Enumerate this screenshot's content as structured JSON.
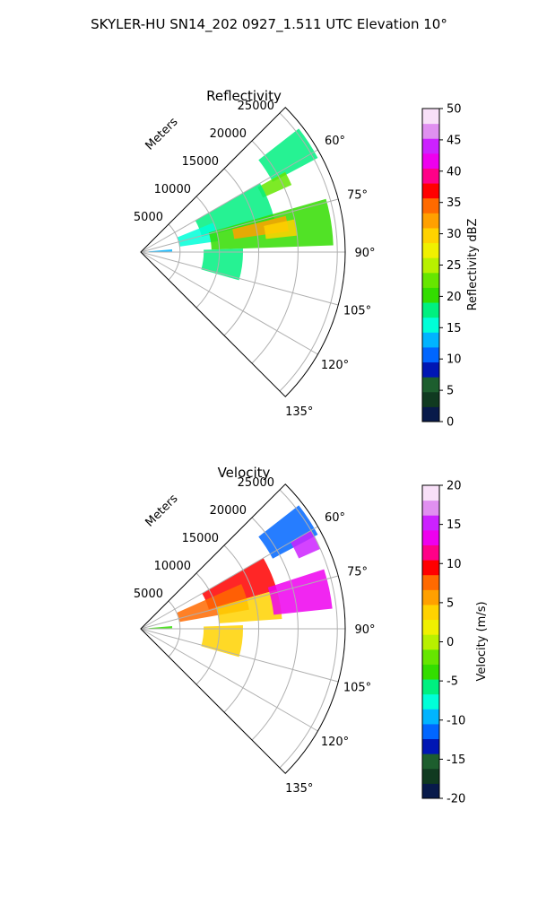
{
  "figure_title": "SKYLER-HU  SN14_202  0927_1.511 UTC Elevation 10°",
  "panels": [
    {
      "title": "Reflectivity",
      "range_label": "Meters",
      "range_ticks": [
        "5000",
        "10000",
        "15000",
        "20000",
        "25000"
      ],
      "azimuth_ticks": [
        "60°",
        "75°",
        "90°",
        "105°",
        "120°",
        "135°"
      ],
      "colorbar": {
        "label": "Reflectivity dBZ",
        "ticks": [
          "0",
          "5",
          "10",
          "15",
          "20",
          "25",
          "30",
          "35",
          "40",
          "45",
          "50"
        ],
        "min": 0,
        "max": 50,
        "stops": [
          "#081a4a",
          "#103a20",
          "#1d5e2e",
          "#0016b4",
          "#0066ff",
          "#00b4ff",
          "#00ffd8",
          "#00f080",
          "#33dd00",
          "#66e600",
          "#b8f000",
          "#f0f000",
          "#ffd200",
          "#ffa000",
          "#ff6a00",
          "#ff0000",
          "#ff0088",
          "#ee00ee",
          "#cc22ff",
          "#e090f0",
          "#f8e0f8"
        ]
      }
    },
    {
      "title": "Velocity",
      "range_label": "Meters",
      "range_ticks": [
        "5000",
        "10000",
        "15000",
        "20000",
        "25000"
      ],
      "azimuth_ticks": [
        "60°",
        "75°",
        "90°",
        "105°",
        "120°",
        "135°"
      ],
      "colorbar": {
        "label": "Velocity (m/s)",
        "ticks": [
          "-20",
          "-15",
          "-10",
          "-5",
          "0",
          "5",
          "10",
          "15",
          "20"
        ],
        "min": -20,
        "max": 20,
        "stops": [
          "#081a4a",
          "#103a20",
          "#1d5e2e",
          "#0016b4",
          "#0066ff",
          "#00b4ff",
          "#00ffd8",
          "#00f080",
          "#33dd00",
          "#66e600",
          "#b8f000",
          "#f0f000",
          "#ffd200",
          "#ffa000",
          "#ff6a00",
          "#ff0000",
          "#ff0088",
          "#ee00ee",
          "#cc22ff",
          "#e090f0",
          "#f8e0f8"
        ]
      }
    }
  ],
  "chart_data": [
    {
      "type": "heatmap",
      "subtype": "radar-ppi-sector",
      "title": "Reflectivity",
      "range_axis": {
        "label": "Meters",
        "ticks": [
          5000,
          10000,
          15000,
          20000,
          25000
        ],
        "max": 26000
      },
      "azimuth_axis": {
        "ticks_deg": [
          60,
          75,
          90,
          105,
          120,
          135
        ],
        "range_deg": [
          45,
          135
        ]
      },
      "grid": true,
      "value_range": [
        0,
        50
      ],
      "units": "dBZ",
      "echo_regions": [
        {
          "az": [
            52,
            62
          ],
          "range_m": [
            19000,
            25500
          ],
          "value": 18
        },
        {
          "az": [
            61,
            66
          ],
          "range_m": [
            17000,
            21000
          ],
          "value": 22
        },
        {
          "az": [
            60,
            76
          ],
          "range_m": [
            8000,
            17500
          ],
          "value": 19
        },
        {
          "az": [
            68,
            82
          ],
          "range_m": [
            5000,
            10000
          ],
          "value": 16
        },
        {
          "az": [
            74,
            88
          ],
          "range_m": [
            9000,
            24500
          ],
          "value": 21
        },
        {
          "az": [
            76,
            82
          ],
          "range_m": [
            12000,
            19000
          ],
          "value": 33
        },
        {
          "az": [
            78,
            84
          ],
          "range_m": [
            16000,
            20000
          ],
          "value": 30
        },
        {
          "az": [
            85,
            89
          ],
          "range_m": [
            1000,
            4000
          ],
          "value": 14
        },
        {
          "az": [
            88,
            106
          ],
          "range_m": [
            8000,
            13000
          ],
          "value": 19
        }
      ]
    },
    {
      "type": "heatmap",
      "subtype": "radar-ppi-sector",
      "title": "Velocity",
      "range_axis": {
        "label": "Meters",
        "ticks": [
          5000,
          10000,
          15000,
          20000,
          25000
        ],
        "max": 26000
      },
      "azimuth_axis": {
        "ticks_deg": [
          60,
          75,
          90,
          105,
          120,
          135
        ],
        "range_deg": [
          45,
          135
        ]
      },
      "grid": true,
      "value_range": [
        -20,
        20
      ],
      "units": "m/s",
      "echo_regions": [
        {
          "az": [
            52,
            62
          ],
          "range_m": [
            19000,
            25500
          ],
          "value": -11
        },
        {
          "az": [
            60,
            66
          ],
          "range_m": [
            22000,
            25000
          ],
          "value": 16
        },
        {
          "az": [
            60,
            74
          ],
          "range_m": [
            9000,
            18000
          ],
          "value": 9
        },
        {
          "az": [
            66,
            80
          ],
          "range_m": [
            5000,
            14000
          ],
          "value": 7
        },
        {
          "az": [
            74,
            86
          ],
          "range_m": [
            10000,
            18000
          ],
          "value": 3
        },
        {
          "az": [
            72,
            84
          ],
          "range_m": [
            17000,
            24500
          ],
          "value": 14
        },
        {
          "az": [
            85,
            89
          ],
          "range_m": [
            1000,
            4000
          ],
          "value": -4
        },
        {
          "az": [
            88,
            106
          ],
          "range_m": [
            8000,
            13000
          ],
          "value": 3
        }
      ]
    }
  ]
}
